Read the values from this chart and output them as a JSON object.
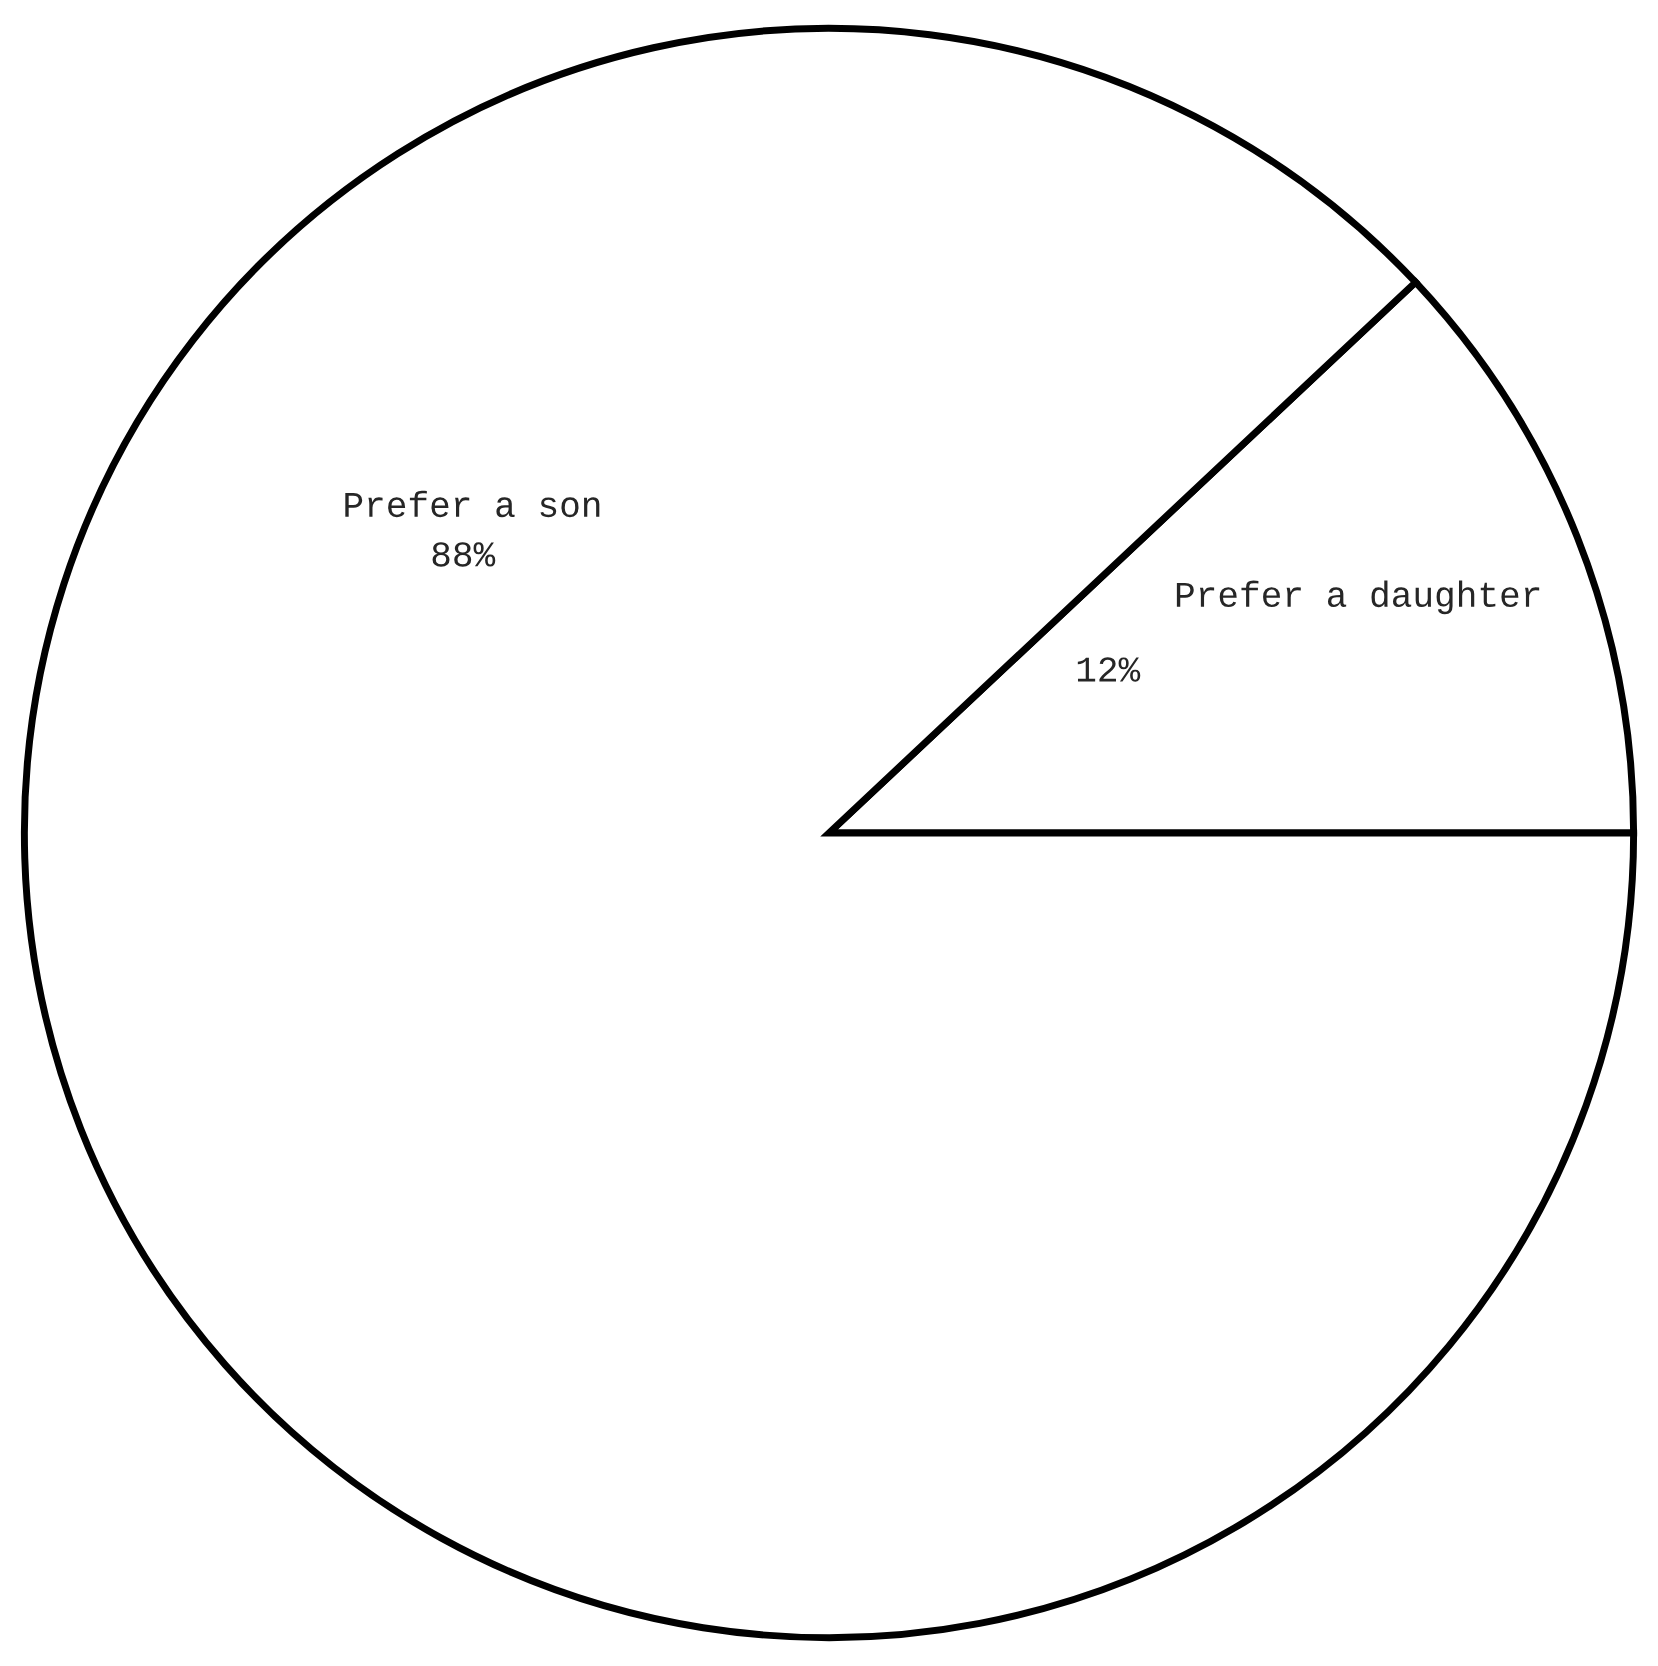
{
  "chart_data": {
    "type": "pie",
    "categories": [
      "Prefer a son",
      "Prefer a daughter"
    ],
    "values": [
      88,
      12
    ],
    "value_labels": [
      "88%",
      "12%"
    ],
    "colors": [
      "#ffffff",
      "#ffffff"
    ]
  }
}
